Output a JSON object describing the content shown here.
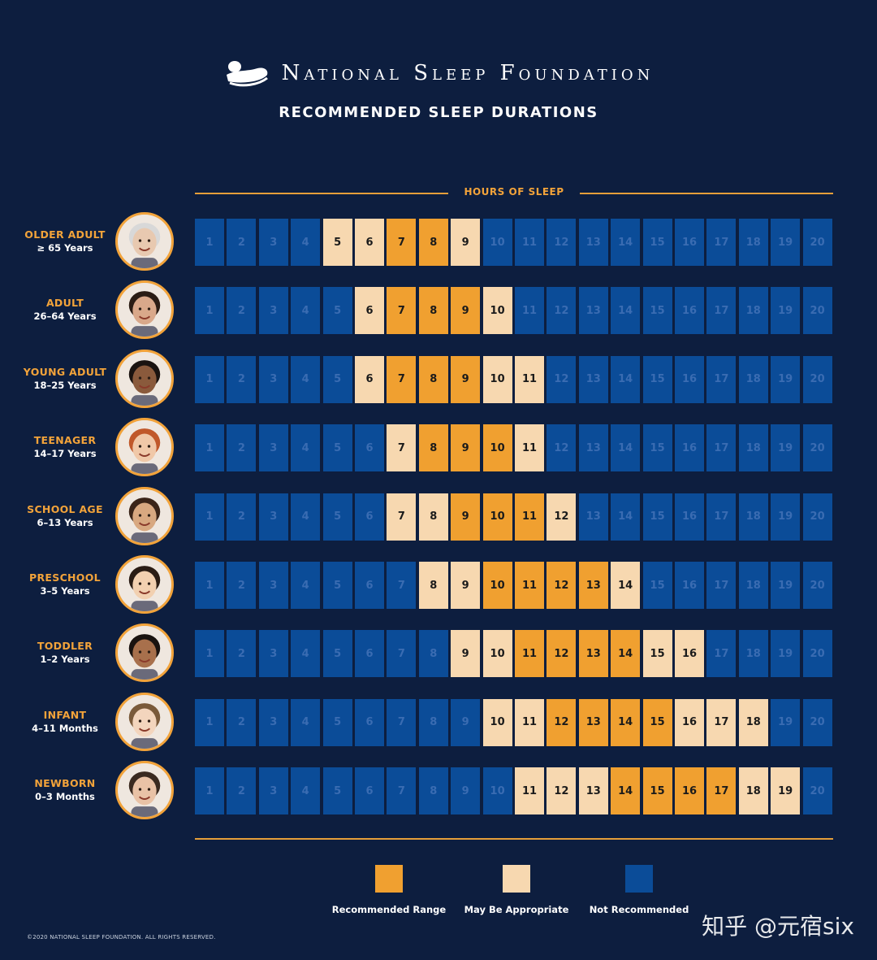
{
  "header": {
    "brand": "National Sleep Foundation",
    "subtitle": "RECOMMENDED SLEEP DURATIONS"
  },
  "axis_label": "HOURS OF SLEEP",
  "colors": {
    "recommended": "#f0a030",
    "may_be_appropriate": "#f7d8b0",
    "not_recommended": "#0b4c98",
    "background": "#0d1e3f",
    "accent": "#f2a33a"
  },
  "legend": {
    "recommended": "Recommended Range",
    "may": "May Be Appropriate",
    "not": "Not Recommended"
  },
  "footer": {
    "copyright": "©2020 NATIONAL SLEEP FOUNDATION. ALL RIGHTS RESERVED.",
    "watermark": "知乎 @元宿six"
  },
  "chart_data": {
    "type": "heatmap",
    "title": "RECOMMENDED SLEEP DURATIONS",
    "xlabel": "HOURS OF SLEEP",
    "hours": [
      1,
      2,
      3,
      4,
      5,
      6,
      7,
      8,
      9,
      10,
      11,
      12,
      13,
      14,
      15,
      16,
      17,
      18,
      19,
      20
    ],
    "legend_placement": "bottom",
    "groups": [
      {
        "name": "OLDER ADULT",
        "range": "≥ 65 Years",
        "avatar": "older-adult-portrait",
        "recommended": [
          7,
          8
        ],
        "may_be_appropriate": [
          5,
          6,
          9
        ]
      },
      {
        "name": "ADULT",
        "range": "26–64 Years",
        "avatar": "adult-portrait",
        "recommended": [
          7,
          8,
          9
        ],
        "may_be_appropriate": [
          6,
          10
        ]
      },
      {
        "name": "YOUNG ADULT",
        "range": "18–25 Years",
        "avatar": "young-adult-portrait",
        "recommended": [
          7,
          8,
          9
        ],
        "may_be_appropriate": [
          6,
          10,
          11
        ]
      },
      {
        "name": "TEENAGER",
        "range": "14–17 Years",
        "avatar": "teenager-portrait",
        "recommended": [
          8,
          9,
          10
        ],
        "may_be_appropriate": [
          7,
          11
        ]
      },
      {
        "name": "SCHOOL AGE",
        "range": "6–13 Years",
        "avatar": "school-age-portrait",
        "recommended": [
          9,
          10,
          11
        ],
        "may_be_appropriate": [
          7,
          8,
          12
        ]
      },
      {
        "name": "PRESCHOOL",
        "range": "3–5 Years",
        "avatar": "preschool-portrait",
        "recommended": [
          10,
          11,
          12,
          13
        ],
        "may_be_appropriate": [
          8,
          9,
          14
        ]
      },
      {
        "name": "TODDLER",
        "range": "1–2 Years",
        "avatar": "toddler-portrait",
        "recommended": [
          11,
          12,
          13,
          14
        ],
        "may_be_appropriate": [
          9,
          10,
          15,
          16
        ]
      },
      {
        "name": "INFANT",
        "range": "4–11 Months",
        "avatar": "infant-portrait",
        "recommended": [
          12,
          13,
          14,
          15
        ],
        "may_be_appropriate": [
          10,
          11,
          16,
          17,
          18
        ]
      },
      {
        "name": "NEWBORN",
        "range": "0–3 Months",
        "avatar": "newborn-portrait",
        "recommended": [
          14,
          15,
          16,
          17
        ],
        "may_be_appropriate": [
          11,
          12,
          13,
          18,
          19
        ]
      }
    ]
  }
}
